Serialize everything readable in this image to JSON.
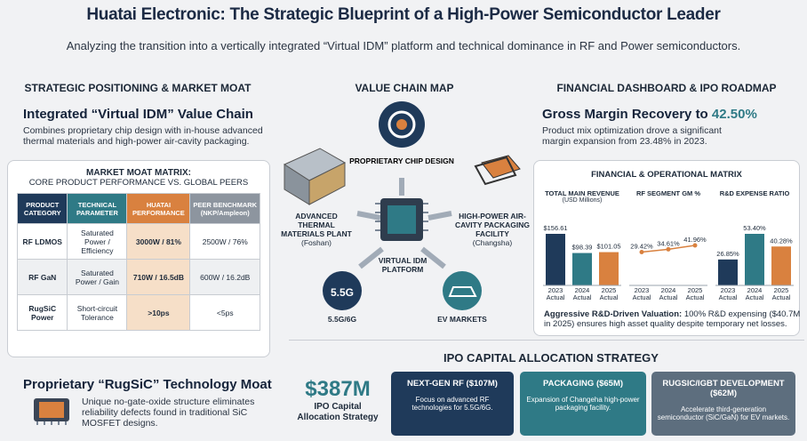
{
  "header": {
    "title": "Huatai Electronic: The Strategic Blueprint of a High-Power Semiconductor Leader",
    "subtitle": "Analyzing the transition into a vertically integrated “Virtual IDM” platform and technical dominance in RF and Power semiconductors."
  },
  "left": {
    "heading": "STRATEGIC POSITIONING & MARKET MOAT",
    "idm_title": "Integrated “Virtual IDM” Value Chain",
    "idm_text": "Combines proprietary chip design with in-house advanced thermal materials and high-power air-cavity packaging.",
    "matrix": {
      "title": "MARKET MOAT MATRIX:",
      "subtitle": "CORE PRODUCT PERFORMANCE VS. GLOBAL PEERS",
      "columns": [
        "PRODUCT CATEGORY",
        "TECHNICAL PARAMETER",
        "HUATAI PERFORMANCE",
        "PEER BENCHMARK (NKP/Ampleon)"
      ],
      "rows": [
        [
          "RF LDMOS",
          "Saturated Power / Efficiency",
          "3000W / 81%",
          "2500W / 76%"
        ],
        [
          "RF GaN",
          "Saturated Power / Gain",
          "710W / 16.5dB",
          "600W / 16.2dB"
        ],
        [
          "RugSiC Power",
          "Short-circuit Tolerance",
          ">10ps",
          "<5ps"
        ]
      ]
    },
    "rugsic_title": "Proprietary “RugSiC” Technology Moat",
    "rugsic_text": "Unique no-gate-oxide structure eliminates reliability defects found in traditional SiC MOSFET designs."
  },
  "value_chain": {
    "heading": "VALUE CHAIN MAP",
    "chip_design": "PROPRIETARY CHIP DESIGN",
    "thermal": "ADVANCED THERMAL MATERIALS PLANT",
    "thermal_loc": "(Foshan)",
    "packaging": "HIGH-POWER AIR-CAVITY PACKAGING FACILITY",
    "packaging_loc": "(Changsha)",
    "center": "VIRTUAL IDM PLATFORM",
    "icon_5g": "5.5G",
    "market_5g": "5.5G/6G",
    "market_ev": "EV MARKETS"
  },
  "financial": {
    "heading": "FINANCIAL DASHBOARD & IPO ROADMAP",
    "gm_title": "Gross Margin Recovery to",
    "gm_value": "42.50%",
    "gm_text": "Product mix optimization drove a significant margin expansion from 23.48% in 2023.",
    "matrix_title": "FINANCIAL & OPERATIONAL MATRIX",
    "charts": [
      {
        "type": "bar",
        "title": "TOTAL MAIN REVENUE",
        "subtitle": "(USD Millions)",
        "categories": [
          "2023 Actual",
          "2024 Actual",
          "2025 Actual"
        ],
        "values": [
          156.61,
          98.39,
          101.05
        ],
        "value_labels": [
          "$156.61",
          "$98.39",
          "$101.05"
        ],
        "colors": [
          "#1f3a5a",
          "#2f7a86",
          "#d9813f"
        ]
      },
      {
        "type": "line",
        "title": "RF SEGMENT GM %",
        "categories": [
          "2023 Actual",
          "2024 Actual",
          "2025 Actual"
        ],
        "values": [
          29.42,
          34.61,
          41.96
        ],
        "value_labels": [
          "29.42%",
          "34.61%",
          "41.96%"
        ],
        "color": "#d9813f"
      },
      {
        "type": "bar",
        "title": "R&D EXPENSE RATIO",
        "categories": [
          "2023 Actual",
          "2024 Actual",
          "2025 Actual"
        ],
        "values": [
          26.85,
          53.4,
          40.28
        ],
        "value_labels": [
          "26.85%",
          "53.40%",
          "40.28%"
        ],
        "colors": [
          "#1f3a5a",
          "#2f7a86",
          "#d9813f"
        ]
      }
    ],
    "note_bold": "Aggressive R&D-Driven Valuation:",
    "note": "100% R&D expensing ($40.7M in 2025) ensures high asset quality despite temporary net losses."
  },
  "ipo": {
    "heading": "IPO CAPITAL ALLOCATION STRATEGY",
    "amount": "$387M",
    "amount_label": "IPO Capital Allocation Strategy",
    "cards": [
      {
        "title": "NEXT-GEN RF ($107M)",
        "text": "Focus on advanced RF technologies for 5.5G/6G."
      },
      {
        "title": "PACKAGING ($65M)",
        "text": "Expansion of Changeha high-power packaging facility."
      },
      {
        "title": "RUGSIC/IGBT DEVELOPMENT ($62M)",
        "text": "Accelerate third-generation semiconductor (SiC/GaN) for EV markets."
      }
    ]
  }
}
